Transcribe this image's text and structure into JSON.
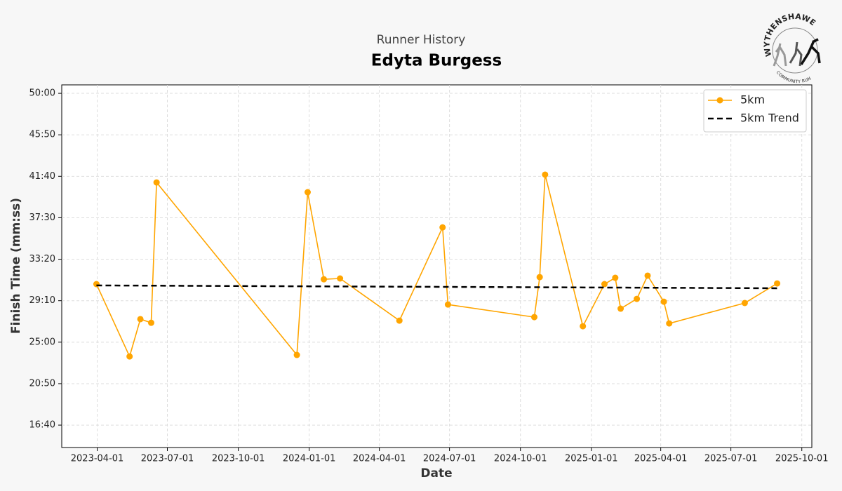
{
  "chart_data": {
    "type": "line",
    "subtitle": "Runner History",
    "title": "Edyta Burgess",
    "x_label": "Date",
    "y_label": "Finish Time (mm:ss)",
    "logo": {
      "top": "WYTHENSHAWE",
      "bottom": "COMMUNITY RUN"
    },
    "xlim": [
      "2023-02-14",
      "2025-10-14"
    ],
    "xticks": [
      "2023-04-01",
      "2023-07-01",
      "2023-10-01",
      "2024-01-01",
      "2024-04-01",
      "2024-07-01",
      "2024-10-01",
      "2025-01-01",
      "2025-04-01",
      "2025-07-01",
      "2025-10-01"
    ],
    "ylim": [
      865,
      3051
    ],
    "yticks": [
      {
        "value": 1000,
        "label": "16:40"
      },
      {
        "value": 1250,
        "label": "20:50"
      },
      {
        "value": 1500,
        "label": "25:00"
      },
      {
        "value": 1750,
        "label": "29:10"
      },
      {
        "value": 2000,
        "label": "33:20"
      },
      {
        "value": 2250,
        "label": "37:30"
      },
      {
        "value": 2500,
        "label": "41:40"
      },
      {
        "value": 2750,
        "label": "45:50"
      },
      {
        "value": 3000,
        "label": "50:00"
      }
    ],
    "grid": true,
    "legend": "upper right",
    "series": [
      {
        "name": "5km",
        "color": "#ffa500",
        "marker": true,
        "dashed": false,
        "x": [
          "2023-03-31",
          "2023-05-13",
          "2023-05-27",
          "2023-06-10",
          "2023-06-17",
          "2023-12-16",
          "2023-12-30",
          "2024-01-20",
          "2024-02-10",
          "2024-04-27",
          "2024-06-22",
          "2024-06-29",
          "2024-10-19",
          "2024-10-26",
          "2024-11-02",
          "2024-12-21",
          "2025-01-18",
          "2025-02-01",
          "2025-02-08",
          "2025-03-01",
          "2025-03-15",
          "2025-04-05",
          "2025-04-12",
          "2025-07-19",
          "2025-08-30"
        ],
        "values": [
          1850,
          1414,
          1639,
          1617,
          2463,
          1423,
          2404,
          1879,
          1884,
          1630,
          2192,
          1727,
          1651,
          1892,
          2510,
          1596,
          1850,
          1888,
          1702,
          1761,
          1901,
          1744,
          1613,
          1736,
          1854
        ]
      },
      {
        "name": "5km Trend",
        "color": "#000000",
        "marker": false,
        "dashed": true,
        "x": [
          "2023-03-31",
          "2025-08-30"
        ],
        "values": [
          1842,
          1825
        ]
      }
    ]
  }
}
